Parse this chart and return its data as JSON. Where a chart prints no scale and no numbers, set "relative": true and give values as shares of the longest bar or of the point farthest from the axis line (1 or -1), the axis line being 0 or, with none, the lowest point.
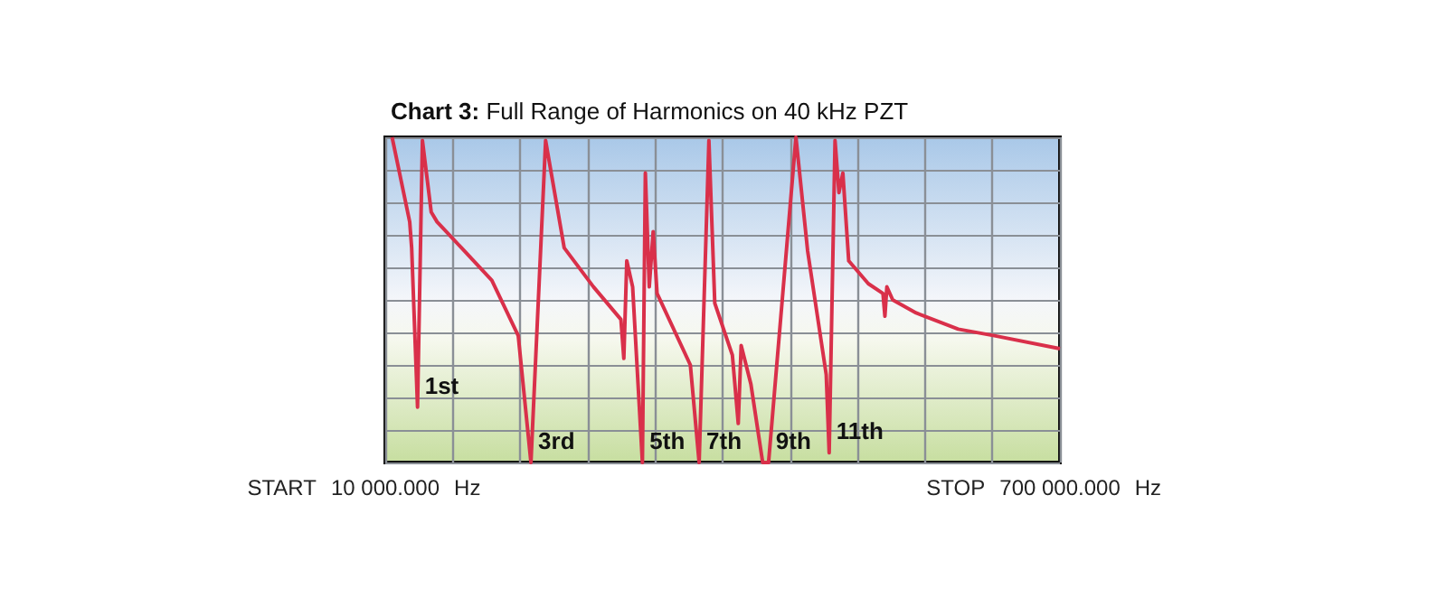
{
  "chart_data": {
    "type": "line",
    "title": "Chart 3: Full Range of Harmonics on 40 kHz PZT",
    "relative": true,
    "grid": true,
    "marker": "none",
    "line_style": "solid",
    "xlim": [
      10000,
      700000
    ],
    "xticks": [
      {
        "value": 10000,
        "label": "10 000.000"
      },
      {
        "value": 79000,
        "label": null
      },
      {
        "value": 148000,
        "label": null
      },
      {
        "value": 217000,
        "label": null
      },
      {
        "value": 286000,
        "label": null
      },
      {
        "value": 355000,
        "label": null
      },
      {
        "value": 424000,
        "label": null
      },
      {
        "value": 493000,
        "label": null
      },
      {
        "value": 562000,
        "label": null
      },
      {
        "value": 631000,
        "label": null
      },
      {
        "value": 700000,
        "label": "700 000.000"
      }
    ],
    "x": [
      17000,
      35000,
      37000,
      43000,
      48000,
      57000,
      63000,
      88000,
      119000,
      146000,
      159000,
      174000,
      193000,
      223000,
      251000,
      254000,
      257000,
      263000,
      273000,
      276000,
      280000,
      284000,
      288000,
      322000,
      331000,
      341000,
      347000,
      365000,
      371000,
      374000,
      384000,
      396000,
      402000,
      430000,
      442000,
      461000,
      464000,
      470000,
      474000,
      478000,
      484000,
      504000,
      519000,
      521000,
      523000,
      529000,
      553000,
      596000,
      633000,
      700000
    ],
    "series": [
      {
        "color": "#d9304a",
        "values": [
          1.0,
          0.74,
          0.66,
          0.17,
          0.99,
          0.77,
          0.74,
          0.66,
          0.56,
          0.39,
          0,
          0.99,
          0.66,
          0.54,
          0.44,
          0.32,
          0.62,
          0.54,
          0,
          0.89,
          0.54,
          0.71,
          0.52,
          0.3,
          0,
          0.99,
          0.49,
          0.33,
          0.12,
          0.36,
          0.24,
          0,
          0,
          1.0,
          0.65,
          0.27,
          0.03,
          0.99,
          0.83,
          0.89,
          0.62,
          0.55,
          0.52,
          0.45,
          0.54,
          0.5,
          0.46,
          0.41,
          0.39,
          0.35
        ]
      }
    ],
    "annotations": [
      "START",
      "Hz",
      "STOP",
      "Hz",
      {
        "text": "1st",
        "x": 43000,
        "y": 0.17
      },
      {
        "text": "3rd",
        "x": 159000,
        "y": 0
      },
      {
        "text": "5th",
        "x": 273000,
        "y": 0
      },
      {
        "text": "7th",
        "x": 331000,
        "y": 0
      },
      {
        "text": "9th",
        "x": 402000,
        "y": 0
      },
      {
        "text": "11th",
        "x": 464000,
        "y": 0.03
      }
    ]
  }
}
